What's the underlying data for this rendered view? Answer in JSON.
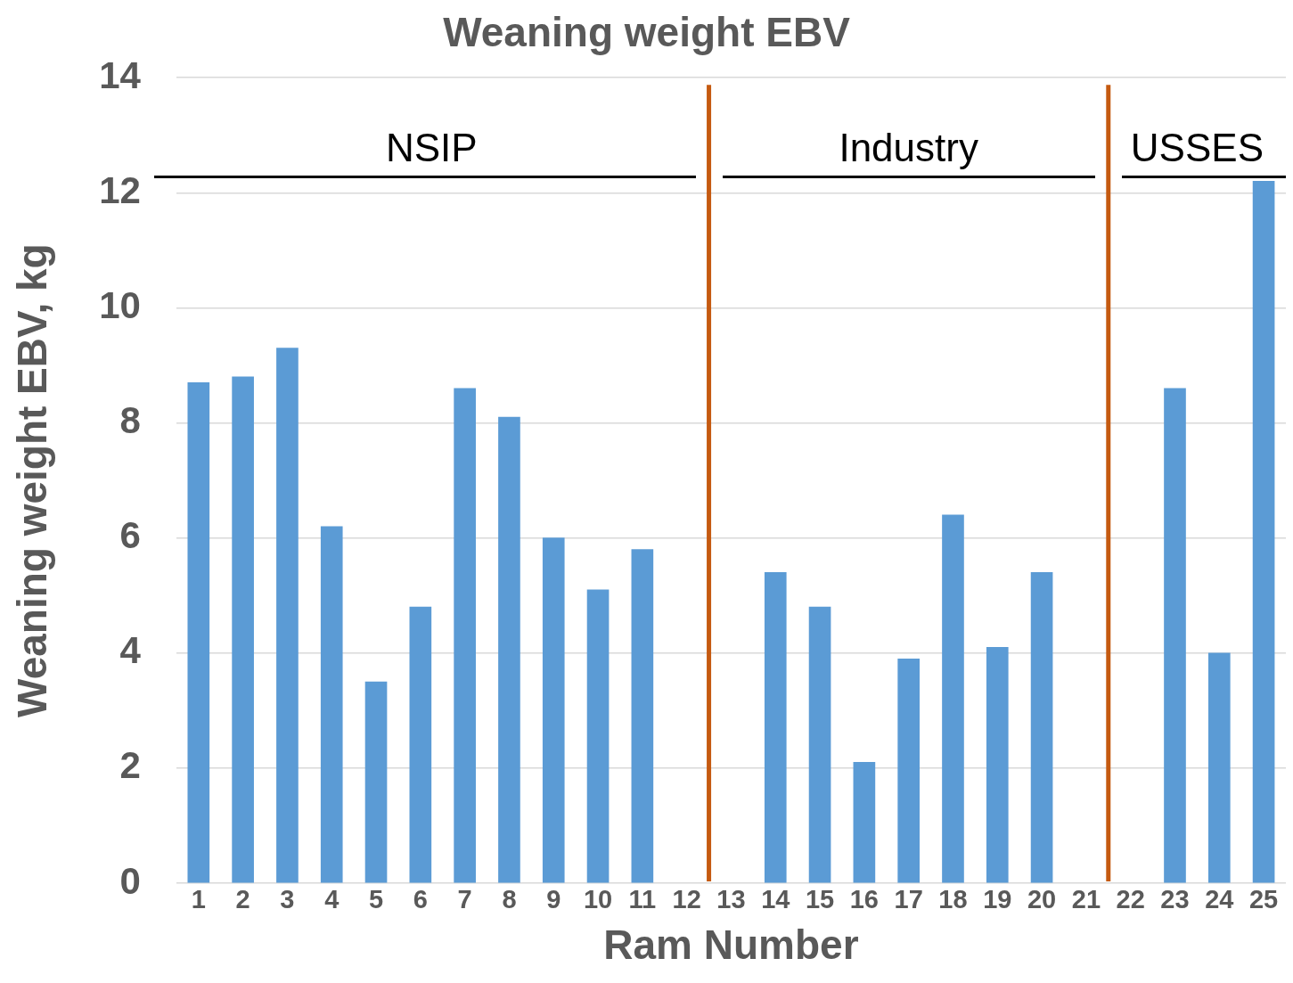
{
  "chart_data": {
    "type": "bar",
    "title": "Weaning weight EBV",
    "xlabel": "Ram Number",
    "ylabel": "Weaning weight EBV, kg",
    "x": [
      1,
      2,
      3,
      4,
      5,
      6,
      7,
      8,
      9,
      10,
      11,
      12,
      13,
      14,
      15,
      16,
      17,
      18,
      19,
      20,
      21,
      22,
      23,
      24,
      25
    ],
    "values": [
      8.7,
      8.8,
      9.3,
      6.2,
      3.5,
      4.8,
      8.6,
      8.1,
      6.0,
      5.1,
      5.8,
      null,
      null,
      5.4,
      4.8,
      2.1,
      3.9,
      6.4,
      4.1,
      5.4,
      null,
      null,
      8.6,
      4.0,
      12.2
    ],
    "color": "#5b9bd5",
    "xlim": [
      0.5,
      25.5
    ],
    "xticks": [
      1,
      2,
      3,
      4,
      5,
      6,
      7,
      8,
      9,
      10,
      11,
      12,
      13,
      14,
      15,
      16,
      17,
      18,
      19,
      20,
      21,
      22,
      23,
      24,
      25
    ],
    "ylim": [
      0,
      14
    ],
    "yticks": [
      0,
      2,
      4,
      6,
      8,
      10,
      12,
      14
    ],
    "grid": "y",
    "legend": false,
    "ref_lines": [
      {
        "axis": "x",
        "value": 12.5,
        "color": "#c55a11"
      },
      {
        "axis": "x",
        "value": 21.5,
        "color": "#c55a11"
      }
    ],
    "annotations": [
      "NSIP",
      "Industry",
      "USSES"
    ]
  }
}
